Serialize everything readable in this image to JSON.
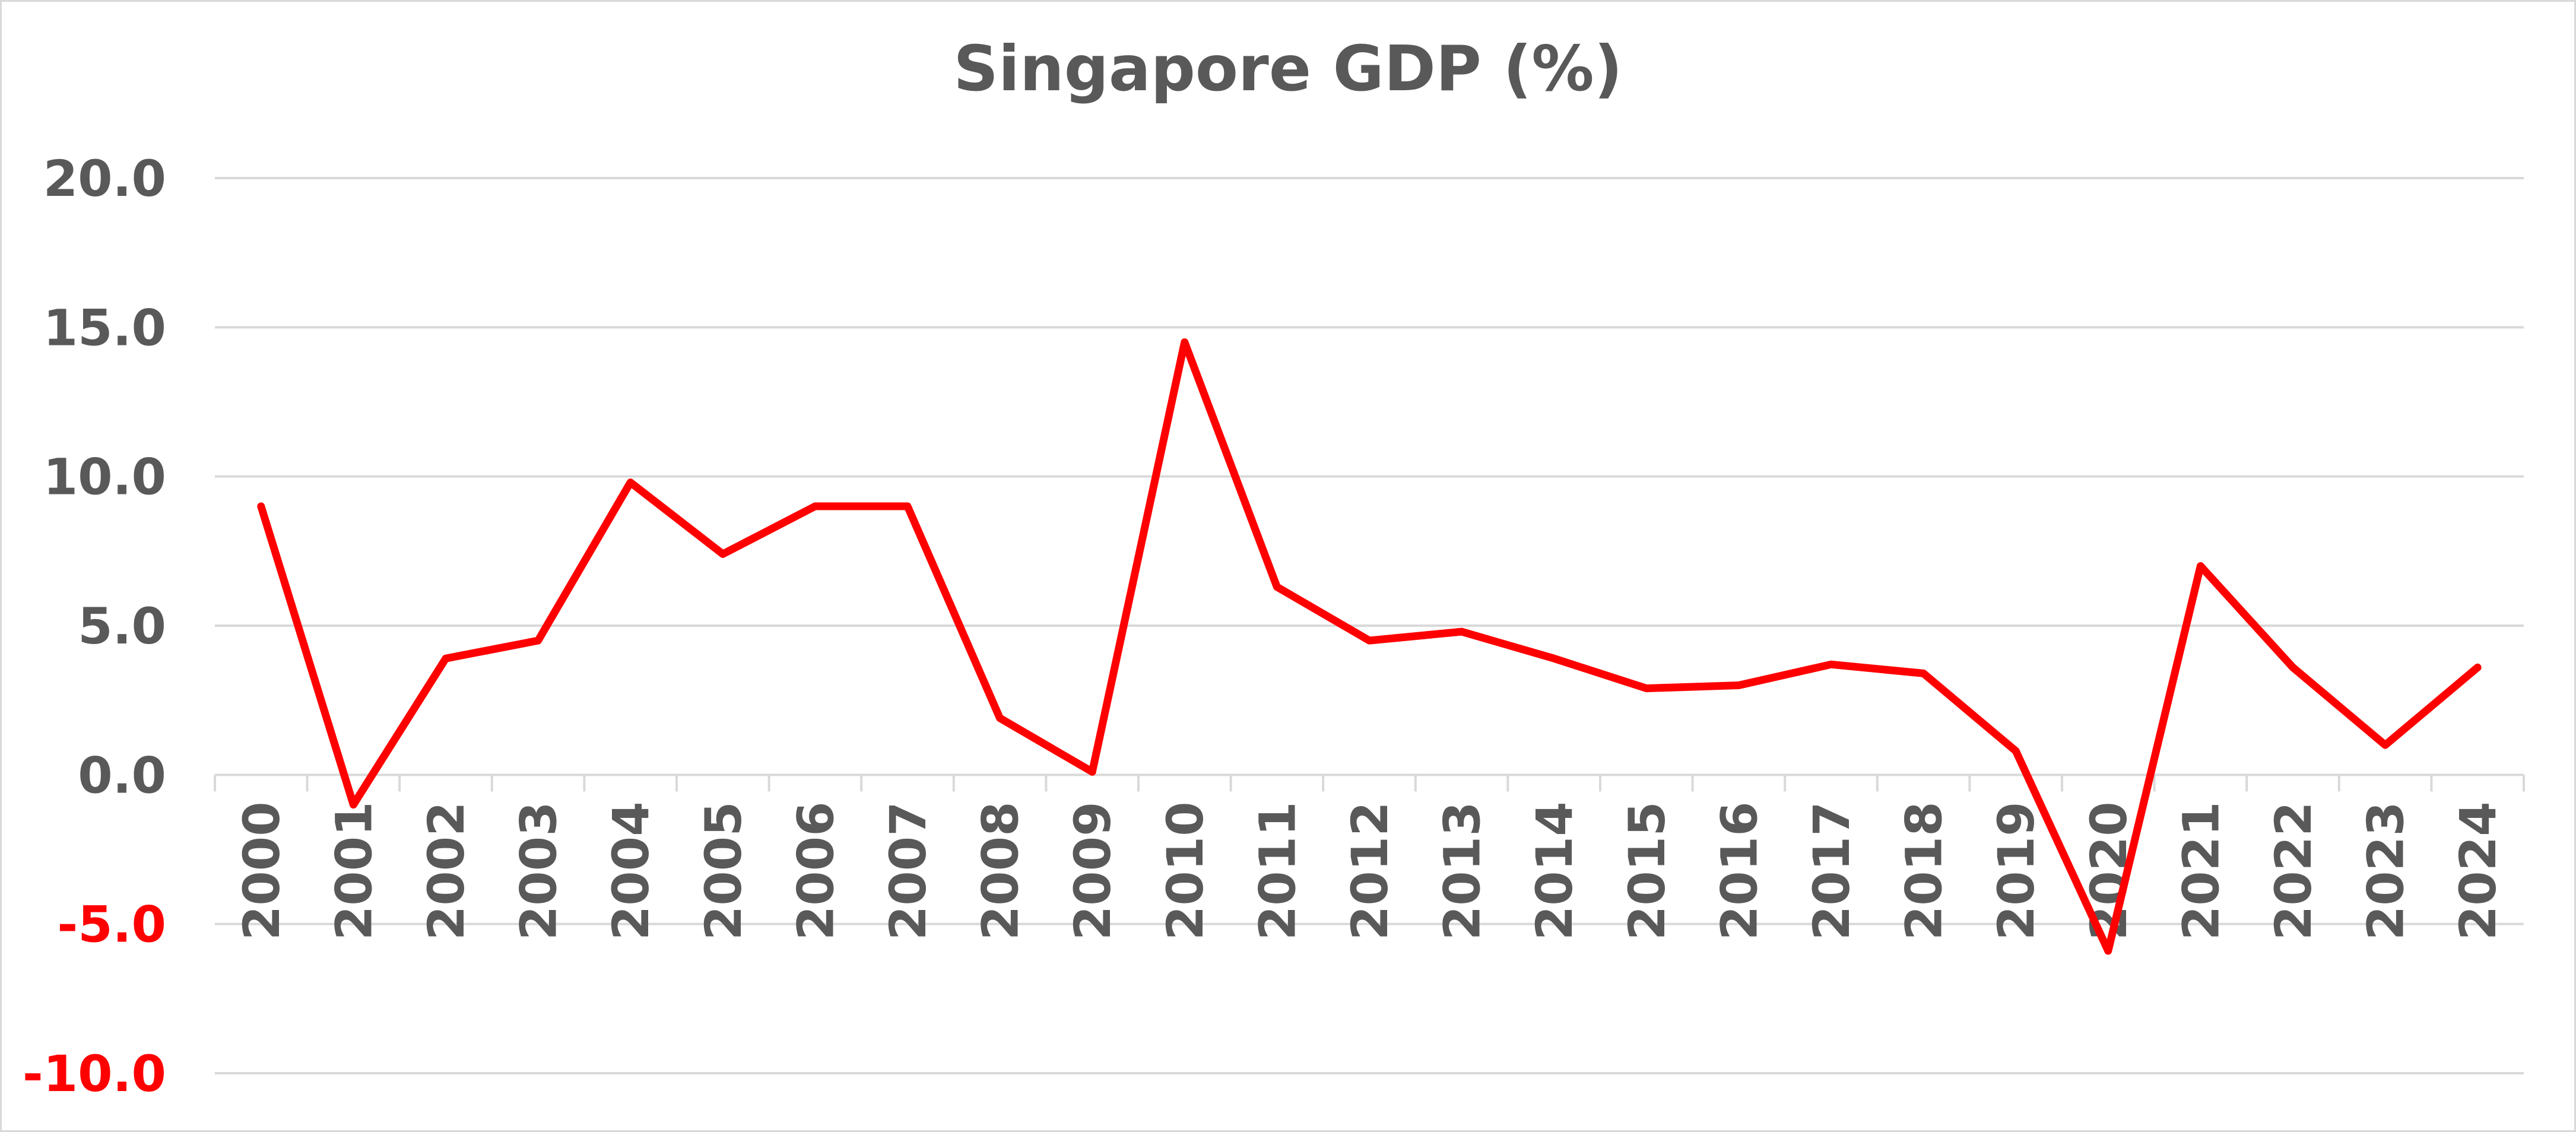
{
  "chart_data": {
    "type": "line",
    "title": "Singapore GDP (%)",
    "xlabel": "",
    "ylabel": "",
    "ylim": [
      -10,
      20
    ],
    "yticks": [
      {
        "value": 20,
        "label": "20.0"
      },
      {
        "value": 15,
        "label": "15.0"
      },
      {
        "value": 10,
        "label": "10.0"
      },
      {
        "value": 5,
        "label": "5.0"
      },
      {
        "value": 0,
        "label": "0.0"
      },
      {
        "value": -5,
        "label": "-5.0"
      },
      {
        "value": -10,
        "label": "-10.0"
      }
    ],
    "categories": [
      "2000",
      "2001",
      "2002",
      "2003",
      "2004",
      "2005",
      "2006",
      "2007",
      "2008",
      "2009",
      "2010",
      "2011",
      "2012",
      "2013",
      "2014",
      "2015",
      "2016",
      "2017",
      "2018",
      "2019",
      "2020",
      "2021",
      "2022",
      "2023",
      "2024"
    ],
    "series": [
      {
        "values": [
          9.0,
          -1.0,
          3.9,
          4.5,
          9.8,
          7.4,
          9.0,
          9.0,
          1.9,
          0.1,
          14.5,
          6.3,
          4.5,
          4.8,
          3.9,
          2.9,
          3.0,
          3.7,
          3.4,
          0.8,
          -5.9,
          7.0,
          3.6,
          1.0,
          3.6
        ]
      }
    ],
    "grid": true,
    "legend": "none",
    "colors": {
      "line": "#ff0000",
      "positive_tick": "#595959",
      "negative_tick": "#ff0000",
      "grid": "#d9d9d9",
      "title": "#595959"
    }
  }
}
